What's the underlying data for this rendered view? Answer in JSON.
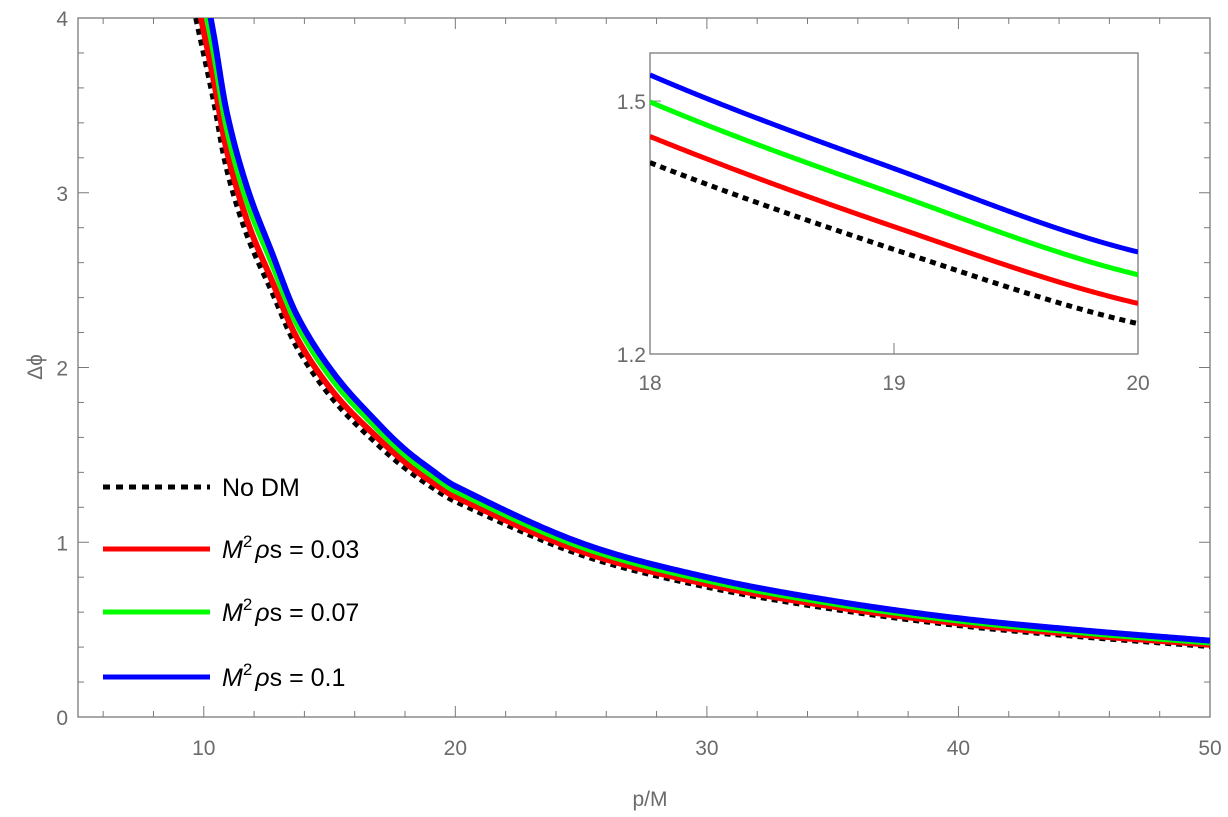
{
  "chart_data": {
    "type": "line",
    "xlabel": "p/M",
    "ylabel": "Δϕ",
    "xlim": [
      5,
      50
    ],
    "ylim": [
      0,
      4
    ],
    "x_ticks": [
      "10",
      "20",
      "30",
      "40",
      "50"
    ],
    "x_tick_values": [
      10,
      20,
      30,
      40,
      50
    ],
    "y_ticks": [
      "0",
      "1",
      "2",
      "3",
      "4"
    ],
    "y_tick_values": [
      0,
      1,
      2,
      3,
      4
    ],
    "legend_position": "bottom-left",
    "x": [
      9.7,
      10.4,
      10.9,
      11.7,
      12.7,
      13.7,
      15.2,
      17,
      18,
      19,
      20,
      25,
      30,
      35,
      40,
      45,
      50
    ],
    "series": [
      {
        "name": "No DM",
        "color": "#000000",
        "dashed": true,
        "legend": {
          "var": "",
          "sup": "",
          "rho": "",
          "rest": "No DM"
        },
        "values": [
          4.0,
          3.53,
          3.15,
          2.77,
          2.44,
          2.12,
          1.81,
          1.55,
          1.427,
          1.324,
          1.236,
          0.93,
          0.746,
          0.62,
          0.526,
          0.46,
          0.406
        ]
      },
      {
        "name": "M^2 ρs = 0.03",
        "color": "#ff0000",
        "dashed": false,
        "legend": {
          "var": "M",
          "sup": "2",
          "rho": "ρ",
          "rest": "s = 0.03"
        },
        "values": [
          4.13,
          3.64,
          3.25,
          2.85,
          2.5,
          2.17,
          1.85,
          1.585,
          1.458,
          1.351,
          1.26,
          0.948,
          0.76,
          0.632,
          0.536,
          0.469,
          0.414
        ]
      },
      {
        "name": "M^2 ρs = 0.07",
        "color": "#00ff00",
        "dashed": false,
        "legend": {
          "var": "M",
          "sup": "2",
          "rho": "ρ",
          "rest": "s = 0.07"
        },
        "values": [
          4.32,
          3.8,
          3.38,
          2.96,
          2.6,
          2.25,
          1.915,
          1.635,
          1.499,
          1.39,
          1.294,
          0.975,
          0.782,
          0.65,
          0.552,
          0.483,
          0.426
        ]
      },
      {
        "name": "M^2 ρs = 0.1",
        "color": "#0000ff",
        "dashed": false,
        "legend": {
          "var": "M",
          "sup": "2",
          "rho": "ρ",
          "rest": "s = 0.1"
        },
        "values": [
          4.44,
          3.9,
          3.47,
          3.04,
          2.66,
          2.3,
          1.96,
          1.67,
          1.531,
          1.42,
          1.321,
          0.996,
          0.8,
          0.665,
          0.565,
          0.495,
          0.437
        ]
      }
    ],
    "inset": {
      "xlim": [
        18,
        20
      ],
      "ylim": [
        1.2,
        1.557
      ],
      "x_ticks": [
        "18",
        "19",
        "20"
      ],
      "x_tick_values": [
        18,
        19,
        20
      ],
      "y_ticks": [
        "1.2",
        "1.5"
      ],
      "y_tick_values": [
        1.2,
        1.5
      ]
    }
  }
}
